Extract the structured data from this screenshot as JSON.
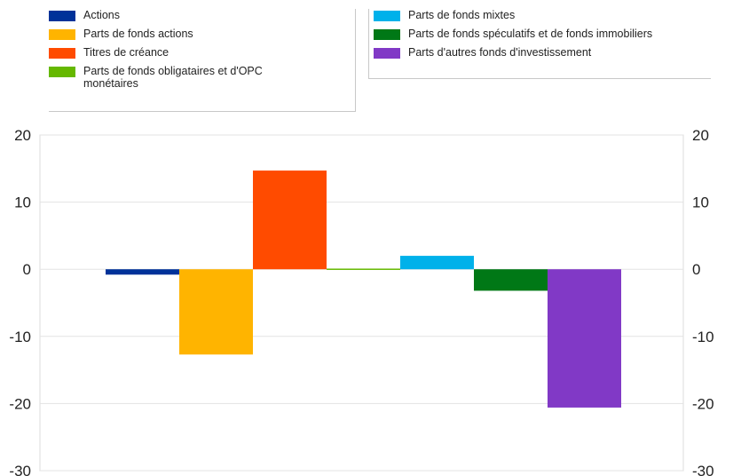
{
  "chart_data": {
    "type": "bar",
    "categories": [
      "Actions",
      "Parts de fonds actions",
      "Titres de créance",
      "Parts de fonds obligataires et d'OPC monétaires",
      "Parts de fonds mixtes",
      "Parts de fonds spéculatifs et de fonds immobiliers",
      "Parts d'autres fonds d'investissement"
    ],
    "series": [
      {
        "name": "Actions",
        "value": -0.8,
        "color": "#003299"
      },
      {
        "name": "Parts de fonds actions",
        "value": -12.7,
        "color": "#FFB400"
      },
      {
        "name": "Titres de créance",
        "value": 14.7,
        "color": "#FF4B00"
      },
      {
        "name": "Parts de fonds obligataires et d'OPC monétaires",
        "value": 0.1,
        "color": "#65B800"
      },
      {
        "name": "Parts de fonds mixtes",
        "value": 2.0,
        "color": "#00B1EA"
      },
      {
        "name": "Parts de fonds spéculatifs et de fonds immobiliers",
        "value": -3.2,
        "color": "#007816"
      },
      {
        "name": "Parts d'autres fonds d'investissement",
        "value": -20.6,
        "color": "#8139C6"
      }
    ],
    "ylim": [
      -30,
      20
    ],
    "yticks": [
      "20",
      "10",
      "0",
      "-10",
      "-20",
      "-30"
    ],
    "title": "",
    "xlabel": "",
    "ylabel": "",
    "grid": true,
    "legend_position": "top"
  }
}
